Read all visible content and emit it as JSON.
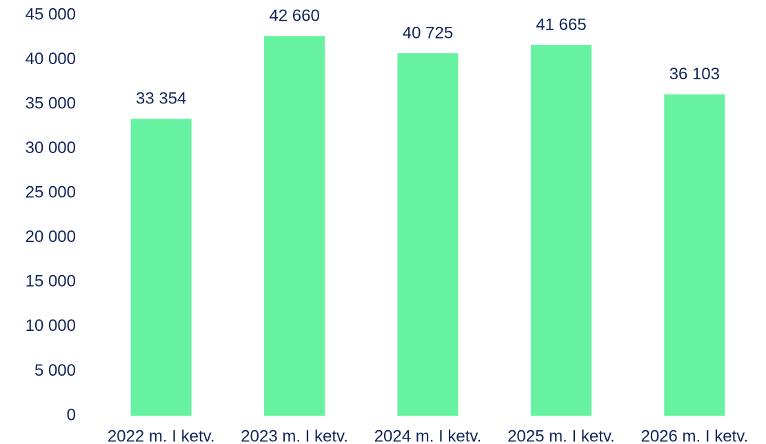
{
  "chart_data": {
    "type": "bar",
    "categories": [
      "2022 m. I ketv.",
      "2023 m. I ketv.",
      "2024 m. I ketv.",
      "2025 m. I ketv.",
      "2026 m. I ketv."
    ],
    "values": [
      33354,
      42660,
      40725,
      41665,
      36103
    ],
    "value_labels": [
      "33 354",
      "42 660",
      "40 725",
      "41 665",
      "36 103"
    ],
    "color": "#66f2a0",
    "ylim": [
      0,
      45000
    ],
    "yticks": [
      0,
      {
        "value": 5000,
        "label": "5 000"
      },
      {
        "value": 10000,
        "label": "10 000"
      },
      {
        "value": 15000,
        "label": "15 000"
      },
      {
        "value": 20000,
        "label": "20 000"
      },
      {
        "value": 25000,
        "label": "25 000"
      },
      {
        "value": 30000,
        "label": "30 000"
      },
      {
        "value": 35000,
        "label": "35 000"
      },
      {
        "value": 40000,
        "label": "40 000"
      },
      {
        "value": 45000,
        "label": "45 000"
      }
    ],
    "grid": false
  }
}
